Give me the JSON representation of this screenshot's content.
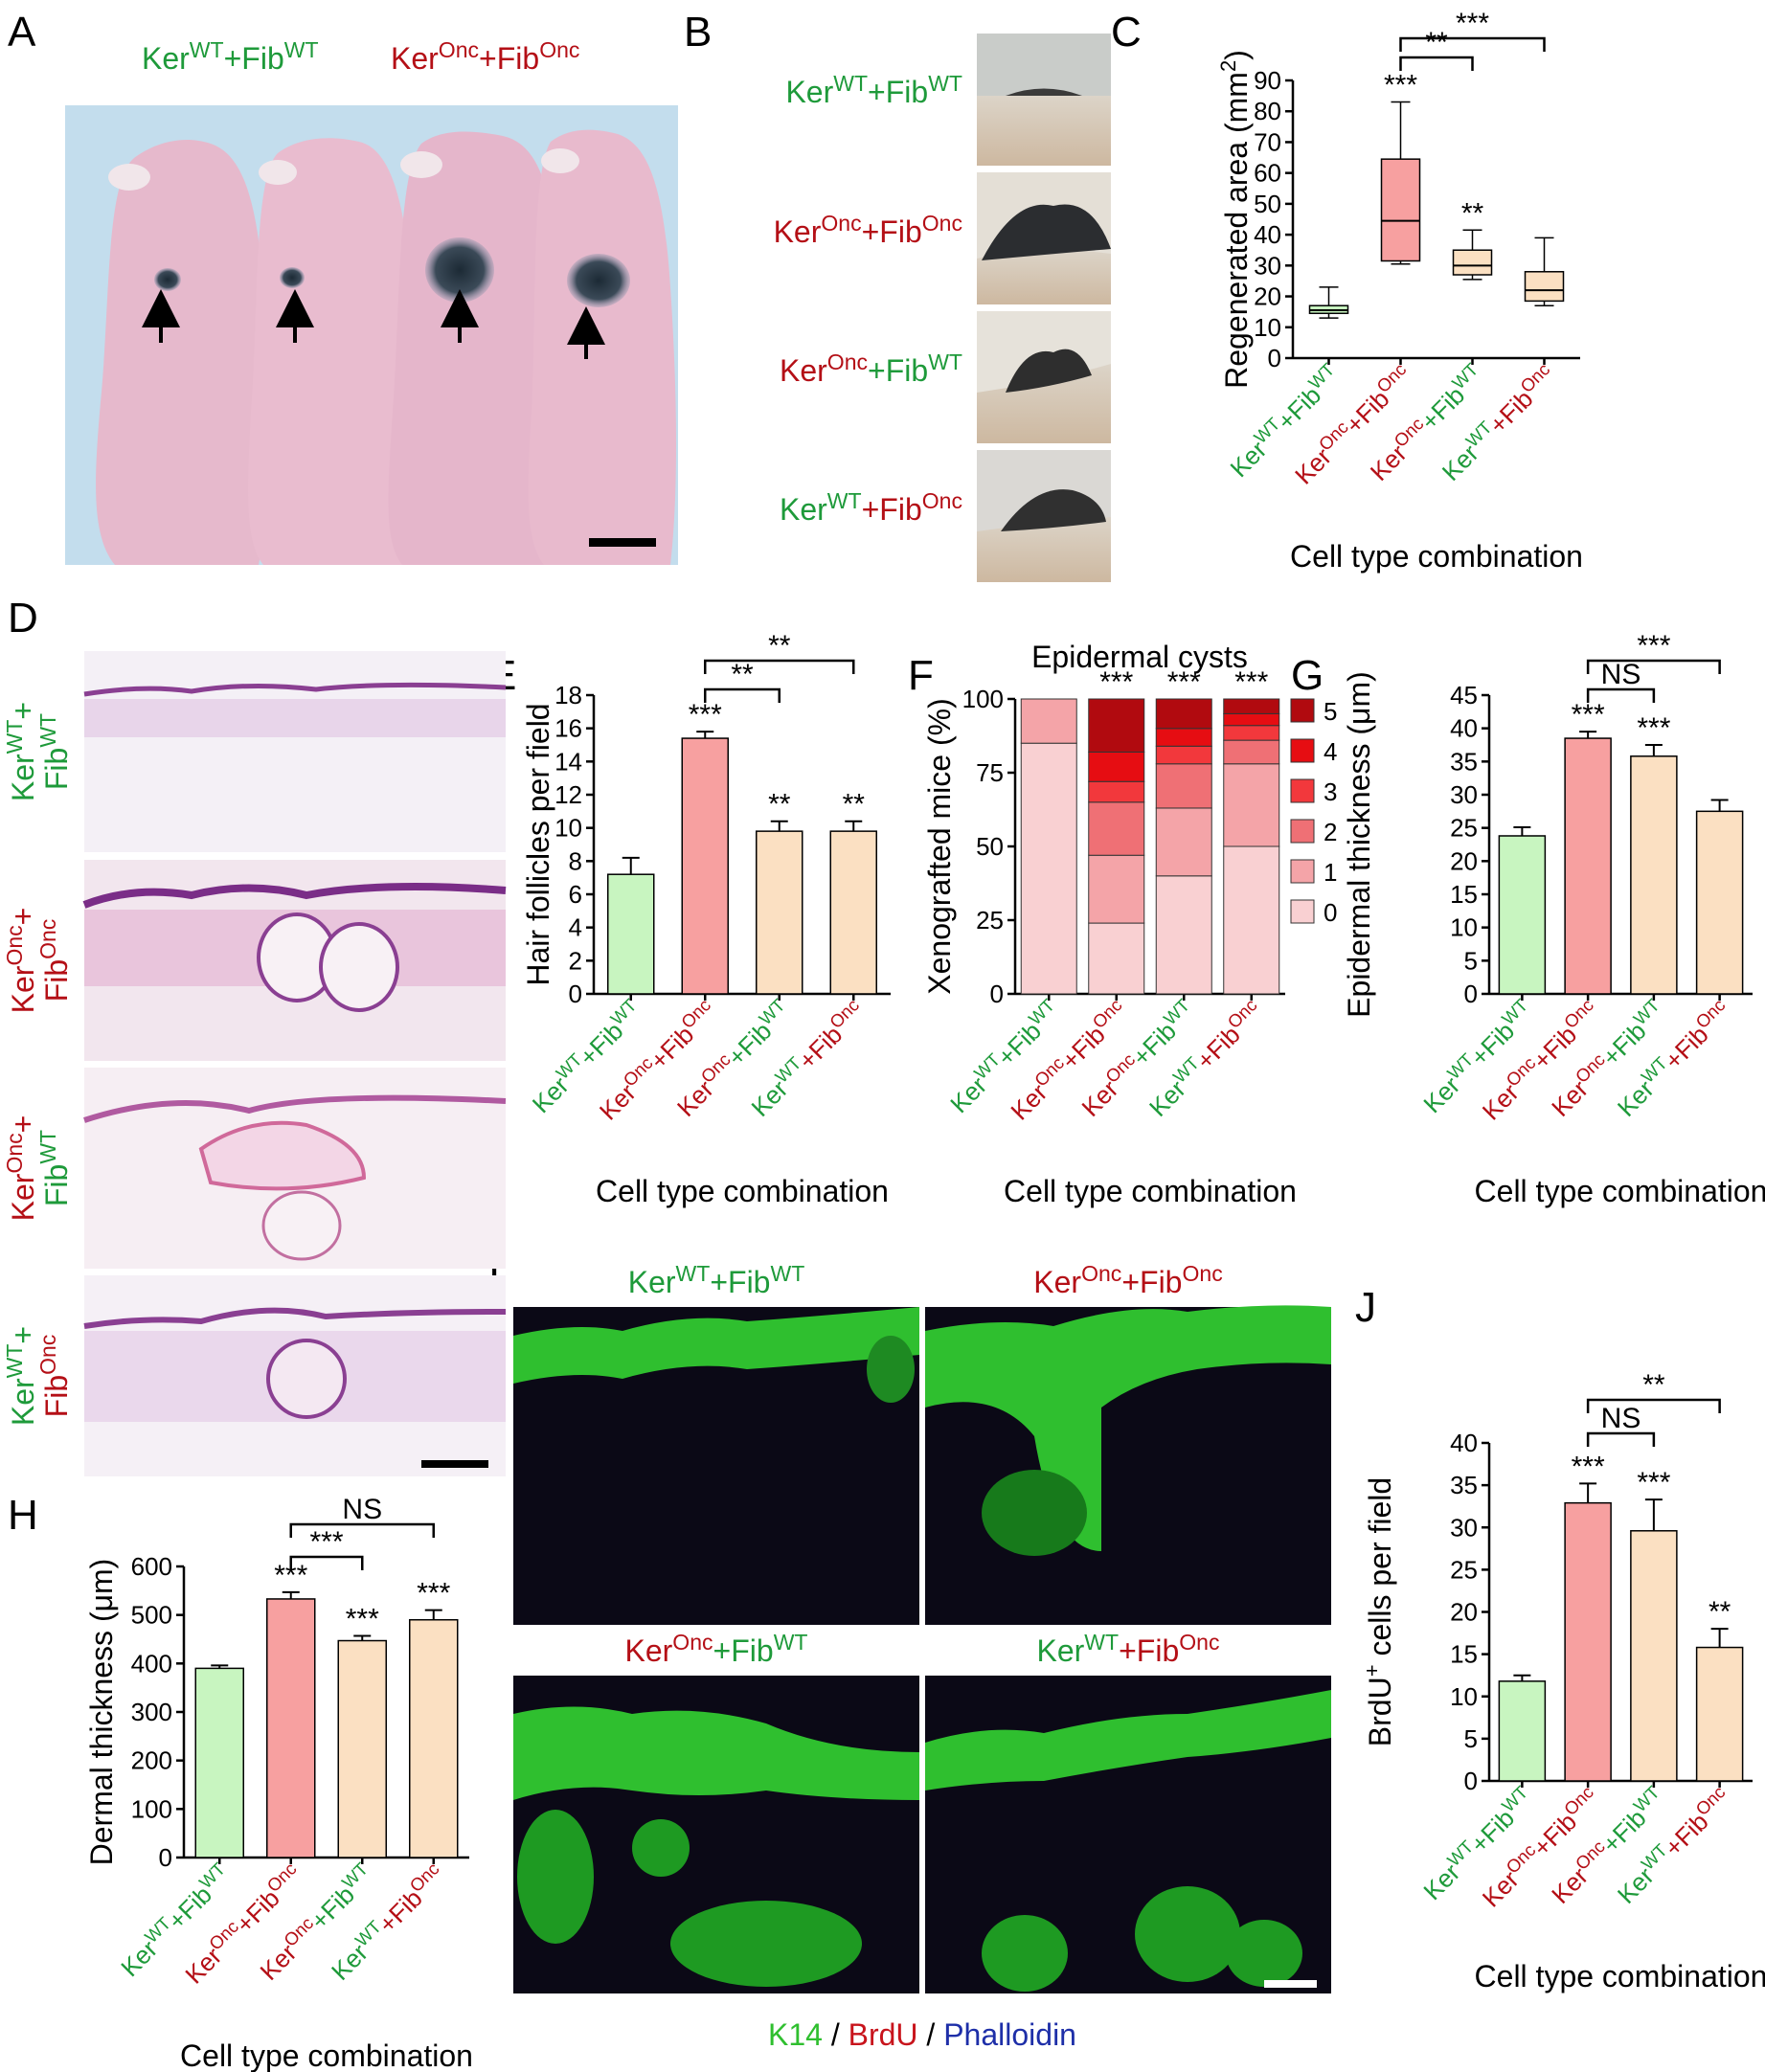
{
  "colors": {
    "wt": "#1e9a3a",
    "onc": "#b40f16",
    "bar_wt": "#c8f5c0",
    "bar_onc": "#f7a0a0",
    "bar_mixed": "#fbe0c2",
    "cyst_shades": [
      "#f9d0d2",
      "#f4a4a8",
      "#ef7075",
      "#f2383c",
      "#e60d12",
      "#b10a0f"
    ]
  },
  "terms": {
    "ker": "Ker",
    "fib": "Fib",
    "wt": "WT",
    "onc": "Onc",
    "plus": "+"
  },
  "combos": [
    {
      "k": "WT",
      "f": "WT"
    },
    {
      "k": "Onc",
      "f": "Onc"
    },
    {
      "k": "Onc",
      "f": "WT"
    },
    {
      "k": "WT",
      "f": "Onc"
    }
  ],
  "common": {
    "xlabel": "Cell type combination"
  },
  "panels": {
    "A": {
      "letter": "A",
      "labels": [
        {
          "k": "WT",
          "f": "WT"
        },
        {
          "k": "Onc",
          "f": "Onc"
        }
      ],
      "image": "Photo of four nude mice on a light blue background; arrows mark the grafted skin patches with regenerated dark hair; scale bar at lower right"
    },
    "B": {
      "letter": "B",
      "rows": [
        {
          "k": "WT",
          "f": "WT"
        },
        {
          "k": "Onc",
          "f": "Onc"
        },
        {
          "k": "Onc",
          "f": "WT"
        },
        {
          "k": "WT",
          "f": "Onc"
        }
      ],
      "image": "Close-up photos of hair tufts grown from each graft"
    },
    "C": {
      "letter": "C",
      "ylabel_pre": "Regenerated area (mm",
      "ylabel_sup": "2",
      "ylabel_post": ")",
      "ticks": [
        "0",
        "10",
        "20",
        "30",
        "40",
        "50",
        "60",
        "70",
        "80",
        "90"
      ],
      "sig_above": [
        "",
        "***",
        "**",
        ""
      ],
      "brackets": [
        {
          "from": 1,
          "to": 2,
          "label": "**"
        },
        {
          "from": 1,
          "to": 3,
          "label": "***"
        }
      ]
    },
    "D": {
      "letter": "D",
      "rows": [
        {
          "k": "WT",
          "f": "WT"
        },
        {
          "k": "Onc",
          "f": "Onc"
        },
        {
          "k": "Onc",
          "f": "WT"
        },
        {
          "k": "WT",
          "f": "Onc"
        }
      ],
      "image": "H&E stained skin cross-sections; scale bar at lower right"
    },
    "E": {
      "letter": "E",
      "ylabel": "Hair follicles per field",
      "ticks": [
        "0",
        "2",
        "4",
        "6",
        "8",
        "10",
        "12",
        "14",
        "16",
        "18"
      ],
      "sig_above": [
        "",
        "***",
        "**",
        "**"
      ],
      "brackets": [
        {
          "from": 1,
          "to": 2,
          "label": "**"
        },
        {
          "from": 1,
          "to": 3,
          "label": "**"
        }
      ]
    },
    "F": {
      "letter": "F",
      "title": "Epidermal cysts",
      "ylabel": "Xenografted mice (%)",
      "ticks": [
        "0",
        "25",
        "50",
        "75",
        "100"
      ],
      "sig_above": [
        "",
        "***",
        "***",
        "***"
      ],
      "legend": [
        "5",
        "4",
        "3",
        "2",
        "1",
        "0"
      ]
    },
    "G": {
      "letter": "G",
      "ylabel_pre": "Epidermal thickness (",
      "ylabel_mu": "μ",
      "ylabel_post": "m)",
      "ticks": [
        "0",
        "5",
        "10",
        "15",
        "20",
        "25",
        "30",
        "35",
        "40",
        "45"
      ],
      "sig_above": [
        "",
        "***",
        "***",
        ""
      ],
      "brackets": [
        {
          "from": 1,
          "to": 2,
          "label": "NS"
        },
        {
          "from": 1,
          "to": 3,
          "label": "***"
        }
      ]
    },
    "H": {
      "letter": "H",
      "ylabel_pre": "Dermal thickness (",
      "ylabel_mu": "μ",
      "ylabel_post": "m)",
      "ticks": [
        "0",
        "100",
        "200",
        "300",
        "400",
        "500",
        "600"
      ],
      "sig_above": [
        "",
        "***",
        "***",
        "***"
      ],
      "brackets": [
        {
          "from": 1,
          "to": 2,
          "label": "***"
        },
        {
          "from": 1,
          "to": 3,
          "label": "NS"
        }
      ]
    },
    "I": {
      "letter": "I",
      "cells": [
        {
          "k": "WT",
          "f": "WT"
        },
        {
          "k": "Onc",
          "f": "Onc"
        },
        {
          "k": "Onc",
          "f": "WT"
        },
        {
          "k": "WT",
          "f": "Onc"
        }
      ],
      "stain_k14": "K14",
      "stain_brdu": "BrdU",
      "stain_phal": "Phalloidin",
      "slash": " / ",
      "image": "Immunofluorescence micrographs: K14 (green), BrdU (red), Phalloidin (blue); scale bar at lower right"
    },
    "J": {
      "letter": "J",
      "ylabel_pre": "BrdU",
      "ylabel_sup": "+",
      "ylabel_post": " cells per field",
      "ticks": [
        "0",
        "5",
        "10",
        "15",
        "20",
        "25",
        "30",
        "35",
        "40"
      ],
      "sig_above": [
        "",
        "***",
        "***",
        "**"
      ],
      "brackets": [
        {
          "from": 1,
          "to": 2,
          "label": "NS"
        },
        {
          "from": 1,
          "to": 3,
          "label": "**"
        }
      ]
    }
  },
  "chart_data": [
    {
      "panel": "C",
      "type": "box",
      "ylabel": "Regenerated area (mm2)",
      "ylim": [
        0,
        90
      ],
      "categories": [
        "KerWT+FibWT",
        "KerOnc+FibOnc",
        "KerOnc+FibWT",
        "KerWT+FibOnc"
      ],
      "boxes": [
        {
          "min": 13,
          "q1": 14.5,
          "median": 15.5,
          "q3": 17,
          "max": 23
        },
        {
          "min": 30.5,
          "q1": 31.5,
          "median": 44.5,
          "q3": 64.5,
          "max": 83
        },
        {
          "min": 25.5,
          "q1": 27,
          "median": 30,
          "q3": 35,
          "max": 41.5
        },
        {
          "min": 17,
          "q1": 18.5,
          "median": 22,
          "q3": 28,
          "max": 39
        }
      ]
    },
    {
      "panel": "E",
      "type": "bar",
      "ylabel": "Hair follicles per field",
      "ylim": [
        0,
        18
      ],
      "categories": [
        "KerWT+FibWT",
        "KerOnc+FibOnc",
        "KerOnc+FibWT",
        "KerWT+FibOnc"
      ],
      "values": [
        7.2,
        15.4,
        9.8,
        9.8
      ],
      "errors": [
        1.0,
        0.4,
        0.6,
        0.6
      ]
    },
    {
      "panel": "F",
      "type": "stacked-bar",
      "title": "Epidermal cysts",
      "ylabel": "Xenografted mice (%)",
      "ylim": [
        0,
        100
      ],
      "categories": [
        "KerWT+FibWT",
        "KerOnc+FibOnc",
        "KerOnc+FibWT",
        "KerWT+FibOnc"
      ],
      "series": [
        {
          "name": "0",
          "values": [
            85,
            24,
            40,
            50
          ]
        },
        {
          "name": "1",
          "values": [
            15,
            23,
            23,
            28
          ]
        },
        {
          "name": "2",
          "values": [
            0,
            18,
            15,
            8
          ]
        },
        {
          "name": "3",
          "values": [
            0,
            7,
            6,
            5
          ]
        },
        {
          "name": "4",
          "values": [
            0,
            10,
            6,
            4
          ]
        },
        {
          "name": "5",
          "values": [
            0,
            18,
            10,
            5
          ]
        }
      ]
    },
    {
      "panel": "G",
      "type": "bar",
      "ylabel": "Epidermal thickness (μm)",
      "ylim": [
        0,
        45
      ],
      "categories": [
        "KerWT+FibWT",
        "KerOnc+FibOnc",
        "KerOnc+FibWT",
        "KerWT+FibOnc"
      ],
      "values": [
        23.8,
        38.5,
        35.8,
        27.5
      ],
      "errors": [
        1.3,
        1.0,
        1.7,
        1.7
      ]
    },
    {
      "panel": "H",
      "type": "bar",
      "ylabel": "Dermal thickness (μm)",
      "ylim": [
        0,
        600
      ],
      "categories": [
        "KerWT+FibWT",
        "KerOnc+FibOnc",
        "KerOnc+FibWT",
        "KerWT+FibOnc"
      ],
      "values": [
        390,
        533,
        447,
        490
      ],
      "errors": [
        6,
        14,
        10,
        20
      ]
    },
    {
      "panel": "J",
      "type": "bar",
      "ylabel": "BrdU+ cells per field",
      "ylim": [
        0,
        40
      ],
      "categories": [
        "KerWT+FibWT",
        "KerOnc+FibOnc",
        "KerOnc+FibWT",
        "KerWT+FibOnc"
      ],
      "values": [
        11.8,
        32.9,
        29.6,
        15.8
      ],
      "errors": [
        0.7,
        2.3,
        3.7,
        2.2
      ]
    }
  ]
}
